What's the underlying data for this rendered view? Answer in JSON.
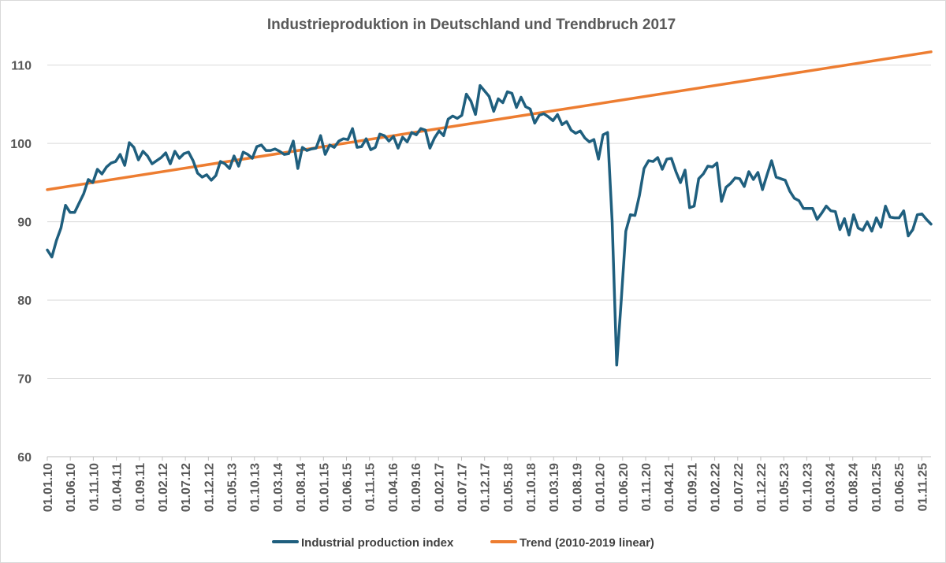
{
  "chart_data": {
    "type": "line",
    "title": "Industrieproduktion in Deutschland und Trendbruch 2017",
    "xlabel": "",
    "ylabel": "",
    "ylim": [
      60,
      115
    ],
    "yticks": [
      60,
      70,
      80,
      90,
      100,
      110
    ],
    "grid": true,
    "legend_position": "bottom",
    "x_tick_labels": [
      "01.01.10",
      "01.06.10",
      "01.11.10",
      "01.04.11",
      "01.09.11",
      "01.02.12",
      "01.07.12",
      "01.12.12",
      "01.05.13",
      "01.10.13",
      "01.03.14",
      "01.08.14",
      "01.01.15",
      "01.06.15",
      "01.11.15",
      "01.04.16",
      "01.09.16",
      "01.02.17",
      "01.07.17",
      "01.12.17",
      "01.05.18",
      "01.10.18",
      "01.03.19",
      "01.08.19",
      "01.01.20",
      "01.06.20",
      "01.11.20",
      "01.04.21",
      "01.09.21",
      "01.02.22",
      "01.07.22",
      "01.12.22",
      "01.05.23",
      "01.10.23",
      "01.03.24",
      "01.08.24",
      "01.01.25",
      "01.06.25",
      "01.11.25"
    ],
    "x_start": "2010-01",
    "x_end": "2026-01",
    "series": [
      {
        "name": "Industrial production index",
        "color": "#1f5f7e",
        "values": [
          86.4,
          85.5,
          87.6,
          89.2,
          92.1,
          91.2,
          91.2,
          92.4,
          93.6,
          95.4,
          95.0,
          96.7,
          96.1,
          97.0,
          97.5,
          97.7,
          98.6,
          97.2,
          100.1,
          99.5,
          97.9,
          99.0,
          98.4,
          97.4,
          97.8,
          98.2,
          98.8,
          97.4,
          99.0,
          98.1,
          98.7,
          98.9,
          97.8,
          96.2,
          95.7,
          96.0,
          95.3,
          95.9,
          97.7,
          97.4,
          96.8,
          98.4,
          97.1,
          98.9,
          98.6,
          98.1,
          99.6,
          99.8,
          99.1,
          99.1,
          99.3,
          99.0,
          98.6,
          98.7,
          100.3,
          96.8,
          99.5,
          99.1,
          99.3,
          99.4,
          101.0,
          98.6,
          99.8,
          99.5,
          100.3,
          100.6,
          100.5,
          101.9,
          99.5,
          99.6,
          100.6,
          99.2,
          99.5,
          101.2,
          101.0,
          100.3,
          100.9,
          99.4,
          100.8,
          100.2,
          101.4,
          101.1,
          101.9,
          101.7,
          99.4,
          100.7,
          101.6,
          101.0,
          103.1,
          103.5,
          103.2,
          103.6,
          106.3,
          105.4,
          103.7,
          107.4,
          106.7,
          106.0,
          104.1,
          105.7,
          105.2,
          106.6,
          106.4,
          104.6,
          105.9,
          104.7,
          104.4,
          102.6,
          103.6,
          103.8,
          103.4,
          102.9,
          103.7,
          102.4,
          102.8,
          101.7,
          101.3,
          101.6,
          100.7,
          100.2,
          100.5,
          98.0,
          101.1,
          101.4,
          90.0,
          71.7,
          80.0,
          88.8,
          90.9,
          90.8,
          93.4,
          96.8,
          97.8,
          97.7,
          98.2,
          96.7,
          98.0,
          98.1,
          96.4,
          95.0,
          96.6,
          91.8,
          92.0,
          95.5,
          96.1,
          97.1,
          97.0,
          97.5,
          92.6,
          94.4,
          94.9,
          95.6,
          95.5,
          94.5,
          96.4,
          95.4,
          96.3,
          94.1,
          96.0,
          97.8,
          95.7,
          95.5,
          95.3,
          93.9,
          93.0,
          92.7,
          91.7,
          91.7,
          91.7,
          90.3,
          91.1,
          92.0,
          91.4,
          91.3,
          89.0,
          90.4,
          88.3,
          90.9,
          89.2,
          88.9,
          90.0,
          88.8,
          90.5,
          89.3,
          92.0,
          90.6,
          90.5,
          90.5,
          91.4,
          88.2,
          89.0,
          90.9,
          91.0,
          90.3,
          89.7
        ]
      },
      {
        "name": "Trend (2010-2019 linear)",
        "color": "#ed7d31",
        "start_value": 94.1,
        "end_value": 111.7
      }
    ]
  }
}
